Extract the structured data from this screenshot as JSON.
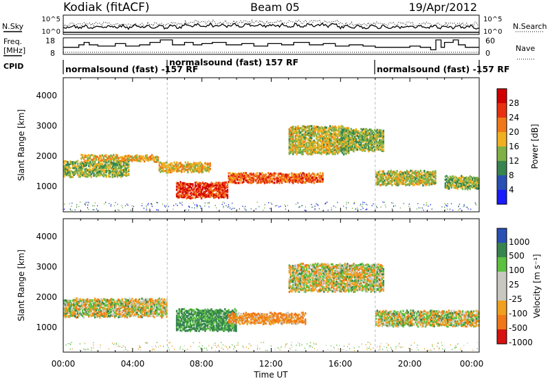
{
  "header": {
    "station": "Kodiak (fitACF)",
    "beam": "Beam 05",
    "date": "19/Apr/2012"
  },
  "noise_panel": {
    "left_label": "N.Sky",
    "right_label": "N.Search",
    "yticks_left": [
      "10^5",
      "10^0"
    ],
    "yticks_right": [
      "10^5",
      "10^0"
    ]
  },
  "freq_panel": {
    "left_label_top": "Freq.",
    "left_label_bottom": "[MHz]",
    "right_label": "Nave",
    "yticks_left": [
      "18",
      "8"
    ],
    "yticks_right": [
      "60",
      "0"
    ],
    "freq_steps": [
      [
        0.0,
        12
      ],
      [
        0.9,
        14
      ],
      [
        1.2,
        16
      ],
      [
        1.5,
        14
      ],
      [
        2.0,
        13
      ],
      [
        3.0,
        15
      ],
      [
        3.6,
        13
      ],
      [
        4.4,
        14
      ],
      [
        5.0,
        16
      ],
      [
        5.6,
        18
      ],
      [
        6.3,
        14
      ],
      [
        7.0,
        16
      ],
      [
        7.5,
        14
      ],
      [
        8.0,
        15
      ],
      [
        8.6,
        16
      ],
      [
        9.4,
        14
      ],
      [
        10.3,
        15
      ],
      [
        11.0,
        13
      ],
      [
        11.8,
        15
      ],
      [
        12.6,
        14
      ],
      [
        13.3,
        16
      ],
      [
        14.2,
        14
      ],
      [
        15.0,
        15
      ],
      [
        15.7,
        13
      ],
      [
        16.5,
        14
      ],
      [
        17.3,
        13
      ],
      [
        18.0,
        12
      ],
      [
        19.0,
        12
      ],
      [
        20.0,
        13
      ],
      [
        20.6,
        12
      ],
      [
        21.2,
        10
      ],
      [
        21.5,
        18
      ],
      [
        21.8,
        12
      ],
      [
        22.0,
        16
      ],
      [
        22.5,
        18
      ],
      [
        22.8,
        14
      ],
      [
        23.2,
        12
      ],
      [
        24.0,
        12
      ]
    ]
  },
  "cpid_panel": {
    "label": "CPID",
    "segments": [
      {
        "text": "normalsound (fast) -157 RF",
        "start_hour": 0
      },
      {
        "text": "normalsound (fast) 157 RF",
        "start_hour": 6
      },
      {
        "text": "normalsound (fast) -157 RF",
        "start_hour": 18
      }
    ]
  },
  "power_panel": {
    "ylabel": "Slant Range [km]",
    "yticks": [
      "1000",
      "2000",
      "3000",
      "4000"
    ],
    "colorbar_label": "Power [dB]",
    "colorbar_ticks": [
      "4",
      "8",
      "12",
      "16",
      "20",
      "24",
      "28"
    ],
    "colors": [
      "#1a1aff",
      "#2a50b4",
      "#37844f",
      "#7fb045",
      "#f0b020",
      "#f07818",
      "#e83010",
      "#d00000"
    ]
  },
  "velocity_panel": {
    "ylabel": "Slant Range [km]",
    "yticks": [
      "1000",
      "2000",
      "3000",
      "4000"
    ],
    "colorbar_label": "Velocity [m s⁻¹]",
    "colorbar_ticks": [
      "1000",
      "500",
      "100",
      "25",
      "-25",
      "-100",
      "-500",
      "-1000"
    ],
    "colors": [
      "#2a50b4",
      "#37844f",
      "#5cc040",
      "#c8c8c0",
      "#c8c8c0",
      "#f0a020",
      "#f07818",
      "#d81010"
    ]
  },
  "xaxis": {
    "label": "Time UT",
    "ticks": [
      "00:00",
      "04:00",
      "08:00",
      "12:00",
      "16:00",
      "20:00",
      "00:00"
    ]
  },
  "chart_data": {
    "type": "heatmap",
    "title": "Kodiak (fitACF)",
    "subtitle": "Beam 05",
    "date": "19/Apr/2012",
    "xlabel": "Time UT",
    "ylabel": "Slant Range [km]",
    "xlim_hours": [
      0,
      24
    ],
    "ylim_km": [
      180,
      4600
    ],
    "power_range_db": [
      0,
      32
    ],
    "velocity_range": [
      -1000,
      1000
    ],
    "power_features": [
      {
        "t0": 0.0,
        "t1": 3.8,
        "range_center": 1650,
        "range_width": 500,
        "power_db": 14
      },
      {
        "t0": 1.0,
        "t1": 5.5,
        "range_center": 2000,
        "range_width": 200,
        "power_db": 18
      },
      {
        "t0": 5.5,
        "t1": 8.5,
        "range_center": 1700,
        "range_width": 300,
        "power_db": 18
      },
      {
        "t0": 6.5,
        "t1": 9.5,
        "range_center": 950,
        "range_width": 500,
        "power_db": 26
      },
      {
        "t0": 9.5,
        "t1": 15.0,
        "range_center": 1350,
        "range_width": 300,
        "power_db": 24
      },
      {
        "t0": 13.0,
        "t1": 16.5,
        "range_center": 2600,
        "range_width": 900,
        "power_db": 16
      },
      {
        "t0": 16.0,
        "t1": 18.5,
        "range_center": 2600,
        "range_width": 700,
        "power_db": 14
      },
      {
        "t0": 18.0,
        "t1": 21.5,
        "range_center": 1350,
        "range_width": 450,
        "power_db": 16
      },
      {
        "t0": 22.0,
        "t1": 24.0,
        "range_center": 1200,
        "range_width": 400,
        "power_db": 14
      }
    ],
    "velocity_features": [
      {
        "t0": 0.0,
        "t1": 6.0,
        "range_center": 1700,
        "range_width": 600,
        "velocity": 0
      },
      {
        "t0": 6.5,
        "t1": 10.0,
        "range_center": 1300,
        "range_width": 700,
        "velocity": 150
      },
      {
        "t0": 9.5,
        "t1": 14.0,
        "range_center": 1350,
        "range_width": 350,
        "velocity": -120
      },
      {
        "t0": 13.0,
        "t1": 18.5,
        "range_center": 2700,
        "range_width": 900,
        "velocity": 0
      },
      {
        "t0": 18.0,
        "t1": 24.0,
        "range_center": 1350,
        "range_width": 500,
        "velocity": 0
      }
    ]
  }
}
